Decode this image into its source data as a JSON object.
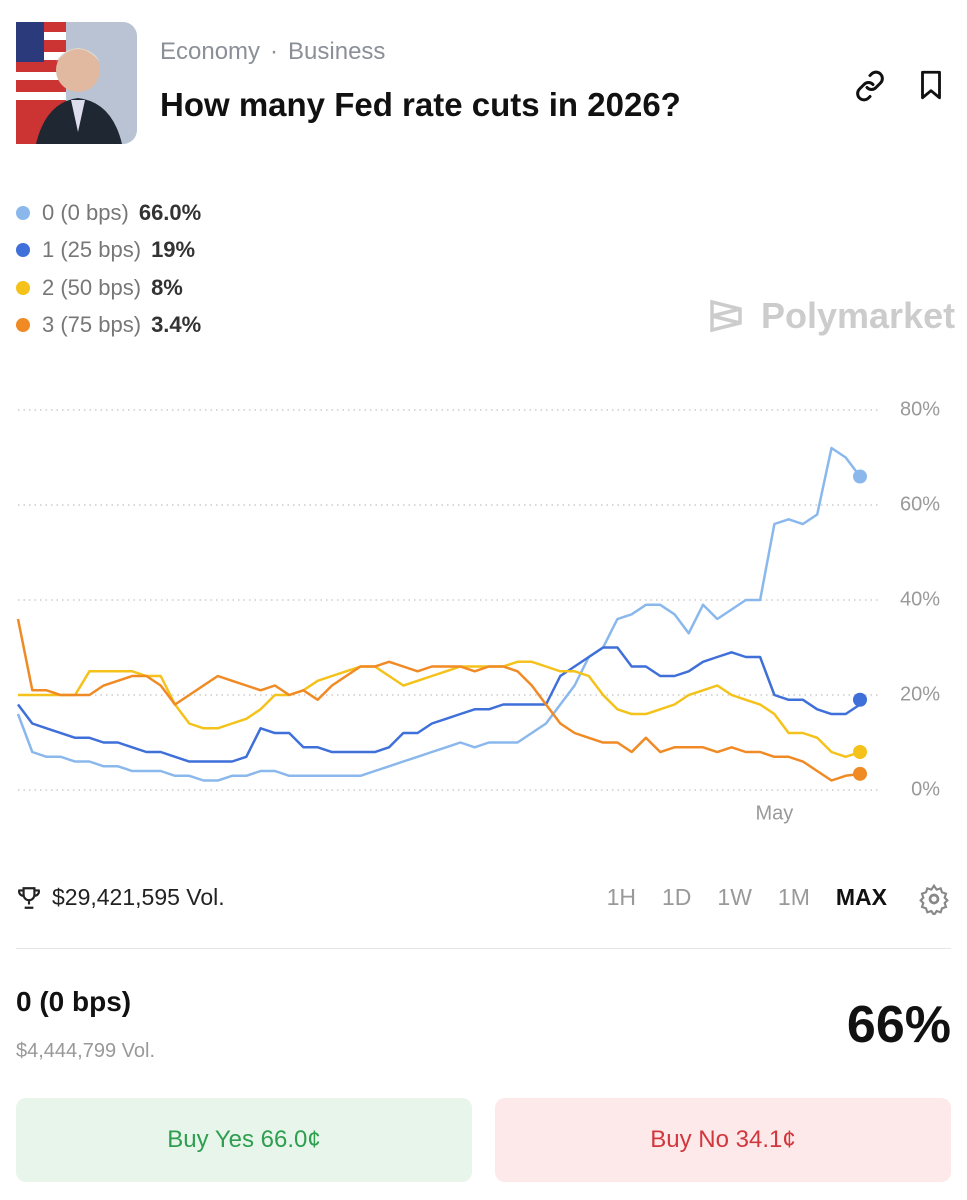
{
  "header": {
    "tags": [
      "Economy",
      "Business"
    ],
    "title": "How many Fed rate cuts in 2026?"
  },
  "watermark": "Polymarket",
  "chart_data": {
    "type": "line",
    "categories": [
      null,
      null,
      null,
      null,
      null,
      null,
      null,
      null,
      null,
      null,
      null,
      null,
      null,
      null,
      null,
      null,
      null,
      null,
      null,
      null,
      null,
      null,
      null,
      null,
      null,
      null,
      null,
      null,
      null,
      null,
      null,
      null,
      null,
      null,
      null,
      null,
      null,
      null,
      null,
      null,
      null,
      null,
      null,
      null,
      null,
      null,
      null,
      null,
      null,
      null,
      null,
      null,
      null,
      "May",
      null,
      null,
      null,
      null,
      null,
      null
    ],
    "ylim": [
      0,
      80
    ],
    "yticks": [
      {
        "value": 0,
        "label": "0%"
      },
      {
        "value": 20,
        "label": "20%"
      },
      {
        "value": 40,
        "label": "40%"
      },
      {
        "value": 60,
        "label": "60%"
      },
      {
        "value": 80,
        "label": "80%"
      }
    ],
    "grid": true,
    "series": [
      {
        "name": "0 (0 bps)",
        "color": "#8ab8ec",
        "current": {
          "value": 66.0,
          "label": "66.0%"
        },
        "values": [
          16,
          8,
          7,
          7,
          6,
          6,
          5,
          5,
          4,
          4,
          4,
          3,
          3,
          2,
          2,
          3,
          3,
          4,
          4,
          3,
          3,
          3,
          3,
          3,
          3,
          4,
          5,
          6,
          7,
          8,
          9,
          10,
          9,
          10,
          10,
          10,
          12,
          14,
          18,
          22,
          28,
          30,
          36,
          37,
          39,
          39,
          37,
          33,
          39,
          36,
          38,
          40,
          40,
          56,
          57,
          56,
          58,
          72,
          70,
          66
        ]
      },
      {
        "name": "1 (25 bps)",
        "color": "#3f6fd8",
        "current": {
          "value": 19,
          "label": "19%"
        },
        "values": [
          18,
          14,
          13,
          12,
          11,
          11,
          10,
          10,
          9,
          8,
          8,
          7,
          6,
          6,
          6,
          6,
          7,
          13,
          12,
          12,
          9,
          9,
          8,
          8,
          8,
          8,
          9,
          12,
          12,
          14,
          15,
          16,
          17,
          17,
          18,
          18,
          18,
          18,
          24,
          26,
          28,
          30,
          30,
          26,
          26,
          24,
          24,
          25,
          27,
          28,
          29,
          28,
          28,
          20,
          19,
          19,
          17,
          16,
          16,
          18
        ]
      },
      {
        "name": "2 (50 bps)",
        "color": "#f4c21a",
        "current": {
          "value": 8,
          "label": "8%"
        },
        "values": [
          20,
          20,
          20,
          20,
          20,
          25,
          25,
          25,
          25,
          24,
          24,
          18,
          14,
          13,
          13,
          14,
          15,
          17,
          20,
          20,
          21,
          23,
          24,
          25,
          26,
          26,
          24,
          22,
          23,
          24,
          25,
          26,
          26,
          26,
          26,
          27,
          27,
          26,
          25,
          25,
          24,
          20,
          17,
          16,
          16,
          17,
          18,
          20,
          21,
          22,
          20,
          19,
          18,
          16,
          12,
          12,
          11,
          8,
          7,
          8
        ]
      },
      {
        "name": "3 (75 bps)",
        "color": "#f08a24",
        "current": {
          "value": 3.4,
          "label": "3.4%"
        },
        "values": [
          36,
          21,
          21,
          20,
          20,
          20,
          22,
          23,
          24,
          24,
          22,
          18,
          20,
          22,
          24,
          23,
          22,
          21,
          22,
          20,
          21,
          19,
          22,
          24,
          26,
          26,
          27,
          26,
          25,
          26,
          26,
          26,
          25,
          26,
          26,
          25,
          22,
          18,
          14,
          12,
          11,
          10,
          10,
          8,
          11,
          8,
          9,
          9,
          9,
          8,
          9,
          8,
          8,
          7,
          7,
          6,
          4,
          2,
          3,
          3.4
        ]
      }
    ]
  },
  "volume": "$29,421,595 Vol.",
  "ranges": [
    "1H",
    "1D",
    "1W",
    "1M",
    "MAX"
  ],
  "outcome": {
    "name": "0 (0 bps)",
    "volume": "$4,444,799 Vol.",
    "chance": "66%",
    "buy_yes": "Buy Yes 66.0¢",
    "buy_no": "Buy No 34.1¢"
  }
}
